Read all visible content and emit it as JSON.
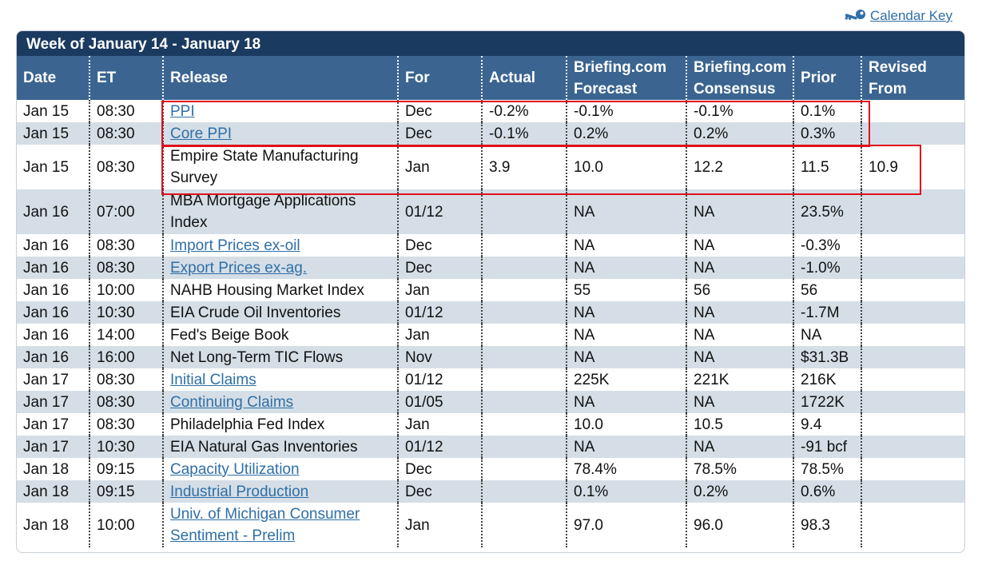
{
  "calendar_key": {
    "label": "Calendar Key",
    "icon": "key-icon"
  },
  "week_title": "Week of January 14 - January 18",
  "columns": {
    "date": "Date",
    "et": "ET",
    "release": "Release",
    "for": "For",
    "actual": "Actual",
    "forecast": "Briefing.com Forecast",
    "consensus": "Briefing.com Consensus",
    "prior": "Prior",
    "revised": "Revised From"
  },
  "rows": [
    {
      "date": "Jan 15",
      "et": "08:30",
      "release": "PPI",
      "link": true,
      "for": "Dec",
      "actual": "-0.2%",
      "forecast": "-0.1%",
      "consensus": "-0.1%",
      "prior": "0.1%",
      "revised": ""
    },
    {
      "date": "Jan 15",
      "et": "08:30",
      "release": "Core PPI",
      "link": true,
      "for": "Dec",
      "actual": "-0.1%",
      "forecast": "0.2%",
      "consensus": "0.2%",
      "prior": "0.3%",
      "revised": ""
    },
    {
      "date": "Jan 15",
      "et": "08:30",
      "release": "Empire State Manufacturing Survey",
      "link": false,
      "tall": true,
      "for": "Jan",
      "actual": "3.9",
      "forecast": "10.0",
      "consensus": "12.2",
      "prior": "11.5",
      "revised": "10.9"
    },
    {
      "date": "Jan 16",
      "et": "07:00",
      "release": "MBA Mortgage Applications Index",
      "link": false,
      "tall": true,
      "for": "01/12",
      "actual": "",
      "forecast": "NA",
      "consensus": "NA",
      "prior": "23.5%",
      "revised": ""
    },
    {
      "date": "Jan 16",
      "et": "08:30",
      "release": "Import Prices ex-oil",
      "link": true,
      "for": "Dec",
      "actual": "",
      "forecast": "NA",
      "consensus": "NA",
      "prior": "-0.3%",
      "revised": ""
    },
    {
      "date": "Jan 16",
      "et": "08:30",
      "release": "Export Prices ex-ag.",
      "link": true,
      "for": "Dec",
      "actual": "",
      "forecast": "NA",
      "consensus": "NA",
      "prior": "-1.0%",
      "revised": ""
    },
    {
      "date": "Jan 16",
      "et": "10:00",
      "release": "NAHB Housing Market Index",
      "link": false,
      "for": "Jan",
      "actual": "",
      "forecast": "55",
      "consensus": "56",
      "prior": "56",
      "revised": ""
    },
    {
      "date": "Jan 16",
      "et": "10:30",
      "release": "EIA Crude Oil Inventories",
      "link": false,
      "for": "01/12",
      "actual": "",
      "forecast": "NA",
      "consensus": "NA",
      "prior": "-1.7M",
      "revised": ""
    },
    {
      "date": "Jan 16",
      "et": "14:00",
      "release": "Fed's Beige Book",
      "link": false,
      "for": "Jan",
      "actual": "",
      "forecast": "NA",
      "consensus": "NA",
      "prior": "NA",
      "revised": ""
    },
    {
      "date": "Jan 16",
      "et": "16:00",
      "release": "Net Long-Term TIC Flows",
      "link": false,
      "for": "Nov",
      "actual": "",
      "forecast": "NA",
      "consensus": "NA",
      "prior": "$31.3B",
      "revised": ""
    },
    {
      "date": "Jan 17",
      "et": "08:30",
      "release": "Initial Claims",
      "link": true,
      "for": "01/12",
      "actual": "",
      "forecast": "225K",
      "consensus": "221K",
      "prior": "216K",
      "revised": ""
    },
    {
      "date": "Jan 17",
      "et": "08:30",
      "release": "Continuing Claims",
      "link": true,
      "for": "01/05",
      "actual": "",
      "forecast": "NA",
      "consensus": "NA",
      "prior": "1722K",
      "revised": ""
    },
    {
      "date": "Jan 17",
      "et": "08:30",
      "release": "Philadelphia Fed Index",
      "link": false,
      "for": "Jan",
      "actual": "",
      "forecast": "10.0",
      "consensus": "10.5",
      "prior": "9.4",
      "revised": ""
    },
    {
      "date": "Jan 17",
      "et": "10:30",
      "release": "EIA Natural Gas Inventories",
      "link": false,
      "for": "01/12",
      "actual": "",
      "forecast": "NA",
      "consensus": "NA",
      "prior": "-91 bcf",
      "revised": ""
    },
    {
      "date": "Jan 18",
      "et": "09:15",
      "release": "Capacity Utilization",
      "link": true,
      "for": "Dec",
      "actual": "",
      "forecast": "78.4%",
      "consensus": "78.5%",
      "prior": "78.5%",
      "revised": ""
    },
    {
      "date": "Jan 18",
      "et": "09:15",
      "release": "Industrial Production",
      "link": true,
      "for": "Dec",
      "actual": "",
      "forecast": "0.1%",
      "consensus": "0.2%",
      "prior": "0.6%",
      "revised": ""
    },
    {
      "date": "Jan 18",
      "et": "10:00",
      "release": "Univ. of Michigan Consumer Sentiment - Prelim",
      "link": true,
      "tall": true,
      "for": "Jan",
      "actual": "",
      "forecast": "97.0",
      "consensus": "96.0",
      "prior": "98.3",
      "revised": ""
    }
  ],
  "colors": {
    "title_bar": "#1b3a60",
    "header_bar": "#3b6590",
    "stripe": "#d5dee6",
    "link": "#2f6fa6",
    "highlight": "#e0101c"
  }
}
